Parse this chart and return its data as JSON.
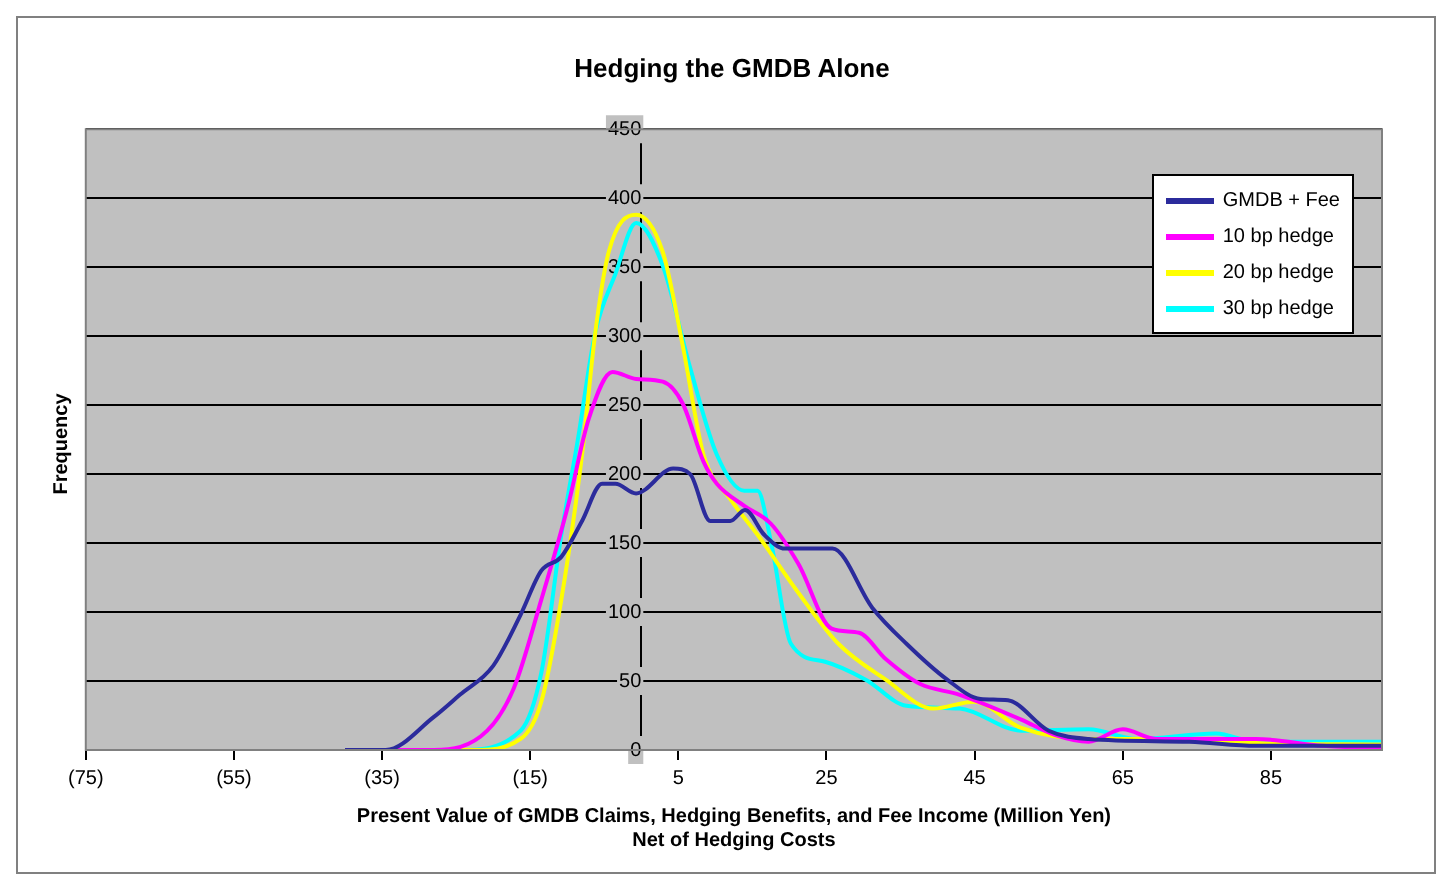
{
  "chart_data": {
    "type": "line",
    "title": "Hedging the GMDB Alone",
    "xlabel": "Present Value of GMDB Claims, Hedging Benefits, and Fee Income (Million Yen)\nNet of Hedging Costs",
    "ylabel": "Frequency",
    "xlim": [
      -75,
      100
    ],
    "xticks": [
      {
        "value": -75,
        "label": "(75)"
      },
      {
        "value": -55,
        "label": "(55)"
      },
      {
        "value": -35,
        "label": "(35)"
      },
      {
        "value": -15,
        "label": "(15)"
      },
      5,
      25,
      45,
      65,
      85
    ],
    "ylim": [
      0,
      450
    ],
    "yticks": [
      0,
      50,
      100,
      150,
      200,
      250,
      300,
      350,
      400,
      450
    ],
    "grid": "y",
    "legend": "top right",
    "marker": "none",
    "line_style": "solid",
    "series": [
      {
        "name": "GMDB + Fee",
        "color": "#2b2b9c",
        "x": [
          -40,
          -34.5,
          -28,
          -24.5,
          -20,
          -16.3,
          -13.5,
          -10.8,
          -8,
          -5.3,
          -3.5,
          -0.7,
          4.3,
          6.6,
          9.3,
          12,
          14,
          16.6,
          19.4,
          25.8,
          31.2,
          35.8,
          41.3,
          45.8,
          49.5,
          55,
          60.4,
          74,
          83,
          100
        ],
        "values": [
          0,
          0,
          24,
          40,
          61,
          98,
          130,
          140,
          166,
          193,
          193,
          186,
          204,
          200,
          166,
          166,
          174,
          156,
          146,
          146,
          103,
          77,
          51,
          37,
          36,
          14,
          8,
          6,
          3,
          3
        ]
      },
      {
        "name": "10 bp hedge",
        "color": "#ff00ff",
        "x": [
          -40,
          -28,
          -20.8,
          -17.2,
          -13.5,
          -9.9,
          -7.1,
          -3.9,
          -0.7,
          2.9,
          5.6,
          8.4,
          10.2,
          13.9,
          17.5,
          21.2,
          25.7,
          29.4,
          33,
          37.6,
          43,
          51.3,
          55.8,
          60.4,
          65,
          69.5,
          83,
          92,
          100
        ],
        "values": [
          0,
          0,
          14,
          45,
          109,
          177,
          240,
          274,
          269,
          267,
          251,
          209,
          193,
          177,
          164,
          135,
          88,
          85,
          66,
          48,
          40,
          22,
          11,
          6,
          15,
          8,
          8,
          3,
          1
        ]
      },
      {
        "name": "20 bp hedge",
        "color": "#ffff00",
        "x": [
          -40,
          -22.6,
          -16.3,
          -13.5,
          -10.8,
          -8,
          -6.2,
          -4.4,
          -0.7,
          2.9,
          5.6,
          8.4,
          12,
          15.7,
          21.2,
          26.6,
          33,
          39.4,
          44.9,
          51.3,
          60.4,
          74,
          83,
          100
        ],
        "values": [
          0,
          0,
          8,
          35,
          109,
          214,
          303,
          361,
          388,
          361,
          293,
          214,
          182,
          156,
          114,
          77,
          51,
          30,
          35,
          16,
          8,
          8,
          5,
          4
        ]
      },
      {
        "name": "30 bp hedge",
        "color": "#00ffff",
        "x": [
          -40,
          -24.5,
          -16.3,
          -13.5,
          -10.8,
          -8.6,
          -6.2,
          -3.5,
          -0.7,
          2.9,
          6.6,
          10.2,
          13.9,
          15.7,
          17.5,
          20.2,
          24.8,
          30.3,
          35.8,
          43,
          51.3,
          60.4,
          66.9,
          77.6,
          83,
          100
        ],
        "values": [
          0,
          0,
          14,
          56,
          156,
          224,
          303,
          345,
          382,
          351,
          277,
          214,
          188,
          188,
          151,
          77,
          64,
          51,
          32,
          30,
          14,
          15,
          8,
          12,
          6,
          6
        ]
      }
    ]
  }
}
